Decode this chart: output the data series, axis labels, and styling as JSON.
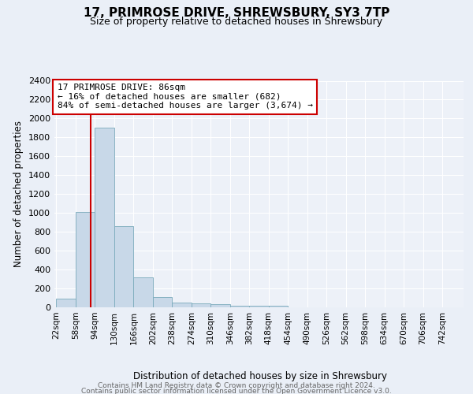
{
  "title1": "17, PRIMROSE DRIVE, SHREWSBURY, SY3 7TP",
  "title2": "Size of property relative to detached houses in Shrewsbury",
  "xlabel": "Distribution of detached houses by size in Shrewsbury",
  "ylabel": "Number of detached properties",
  "bin_edges": [
    22,
    58,
    94,
    130,
    166,
    202,
    238,
    274,
    310,
    346,
    382,
    418,
    454,
    490,
    526,
    562,
    598,
    634,
    670,
    706,
    742
  ],
  "bar_heights": [
    90,
    1010,
    1900,
    860,
    320,
    110,
    50,
    45,
    35,
    20,
    20,
    20,
    0,
    0,
    0,
    0,
    0,
    0,
    0,
    0
  ],
  "bar_color": "#c8d8e8",
  "bar_edge_color": "#7aaabb",
  "subject_value": 86,
  "red_line_color": "#cc0000",
  "annotation_text": "17 PRIMROSE DRIVE: 86sqm\n← 16% of detached houses are smaller (682)\n84% of semi-detached houses are larger (3,674) →",
  "annotation_box_color": "#ffffff",
  "annotation_box_edge": "#cc0000",
  "ylim": [
    0,
    2400
  ],
  "yticks": [
    0,
    200,
    400,
    600,
    800,
    1000,
    1200,
    1400,
    1600,
    1800,
    2000,
    2200,
    2400
  ],
  "footer1": "Contains HM Land Registry data © Crown copyright and database right 2024.",
  "footer2": "Contains public sector information licensed under the Open Government Licence v3.0.",
  "bg_color": "#eaeff7",
  "plot_bg_color": "#edf1f8"
}
